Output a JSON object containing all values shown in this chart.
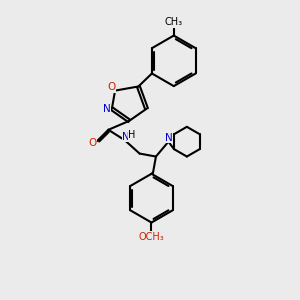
{
  "bg_color": "#ebebeb",
  "atom_color_N": "#0000cc",
  "atom_color_O": "#cc2200",
  "bond_color": "#000000",
  "bond_width": 1.5,
  "fig_width": 3.0,
  "fig_height": 3.0,
  "xlim": [
    0,
    10
  ],
  "ylim": [
    0,
    10
  ]
}
